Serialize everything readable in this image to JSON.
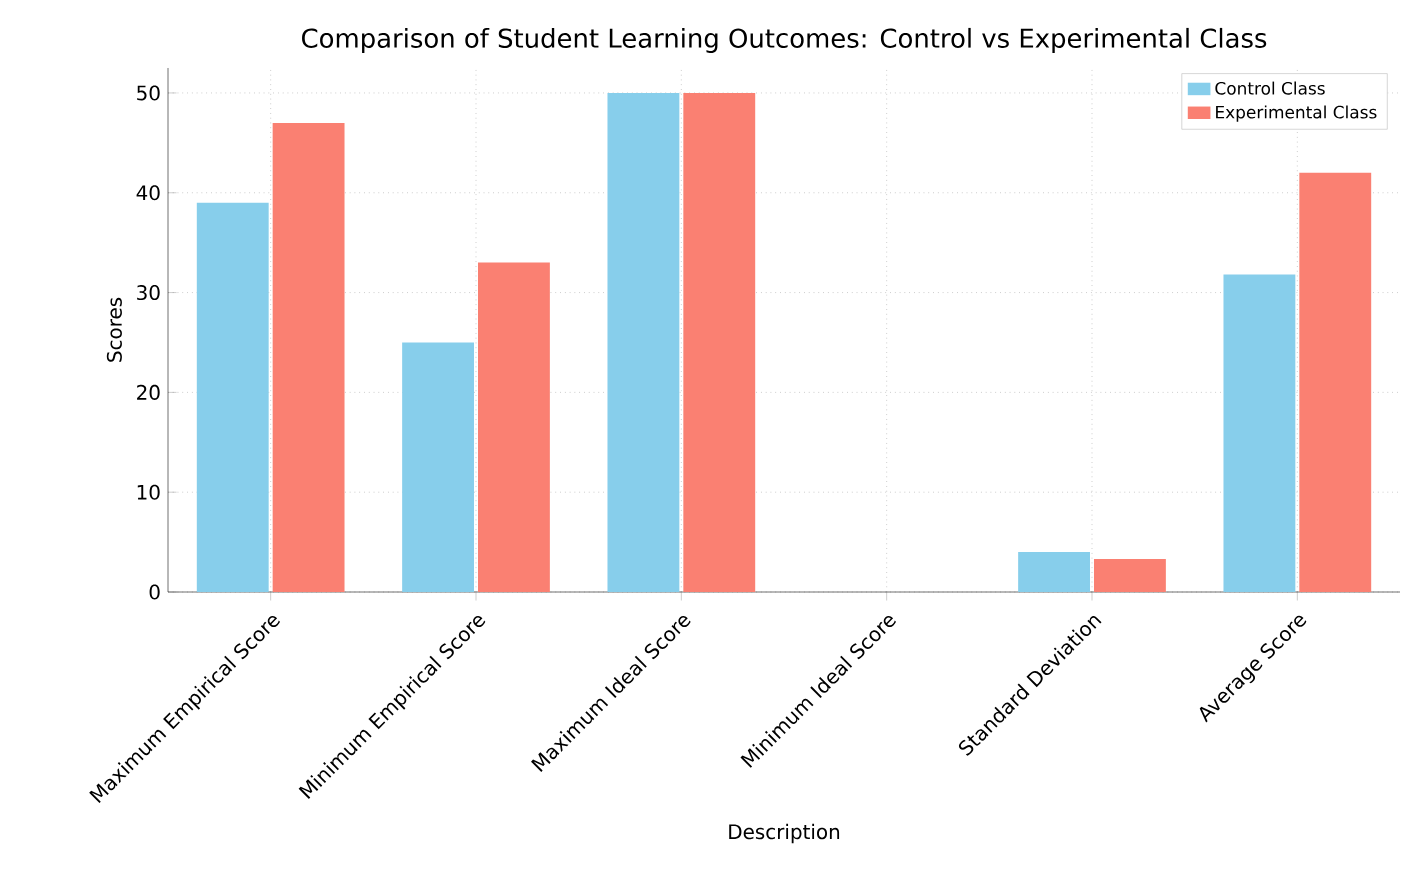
{
  "chart_data": {
    "type": "bar",
    "title": "Comparison of Student Learning Outcomes: Control vs Experimental Class",
    "xlabel": "Description",
    "ylabel": "Scores",
    "categories": [
      "Maximum Empirical Score",
      "Minimum Empirical Score",
      "Maximum Ideal Score",
      "Minimum Ideal Score",
      "Standard Deviation",
      "Average Score"
    ],
    "series": [
      {
        "name": "Control Class",
        "color": "#87ceeb",
        "values": [
          39,
          25,
          50,
          0,
          4,
          31.8
        ]
      },
      {
        "name": "Experimental Class",
        "color": "#fa8072",
        "values": [
          47,
          33,
          50,
          0,
          3.3,
          42
        ]
      }
    ],
    "ylim": [
      0,
      52.5
    ],
    "yticks": [
      0,
      10,
      20,
      30,
      40,
      50
    ],
    "grid": true,
    "legend": "top right"
  }
}
